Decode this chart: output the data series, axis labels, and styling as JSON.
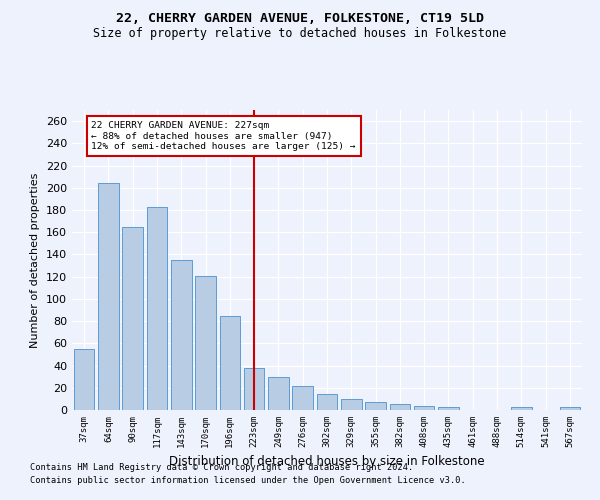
{
  "title": "22, CHERRY GARDEN AVENUE, FOLKESTONE, CT19 5LD",
  "subtitle": "Size of property relative to detached houses in Folkestone",
  "xlabel": "Distribution of detached houses by size in Folkestone",
  "ylabel": "Number of detached properties",
  "footnote1": "Contains HM Land Registry data © Crown copyright and database right 2024.",
  "footnote2": "Contains public sector information licensed under the Open Government Licence v3.0.",
  "categories": [
    "37sqm",
    "64sqm",
    "90sqm",
    "117sqm",
    "143sqm",
    "170sqm",
    "196sqm",
    "223sqm",
    "249sqm",
    "276sqm",
    "302sqm",
    "329sqm",
    "355sqm",
    "382sqm",
    "408sqm",
    "435sqm",
    "461sqm",
    "488sqm",
    "514sqm",
    "541sqm",
    "567sqm"
  ],
  "values": [
    55,
    204,
    165,
    183,
    135,
    121,
    85,
    38,
    30,
    22,
    14,
    10,
    7,
    5,
    4,
    3,
    0,
    0,
    3,
    0,
    3
  ],
  "bar_color": "#b8cce4",
  "bar_edge_color": "#5b9bd5",
  "background_color": "#eef2fc",
  "plot_bg_color": "#eef2fc",
  "grid_color": "#ffffff",
  "annotation_text1": "22 CHERRY GARDEN AVENUE: 227sqm",
  "annotation_text2": "← 88% of detached houses are smaller (947)",
  "annotation_text3": "12% of semi-detached houses are larger (125) →",
  "annotation_box_color": "#cc0000",
  "annotation_fill": "#ffffff",
  "vline_color": "#cc0000",
  "vline_x": 7.0,
  "ylim": [
    0,
    270
  ],
  "yticks": [
    0,
    20,
    40,
    60,
    80,
    100,
    120,
    140,
    160,
    180,
    200,
    220,
    240,
    260
  ]
}
